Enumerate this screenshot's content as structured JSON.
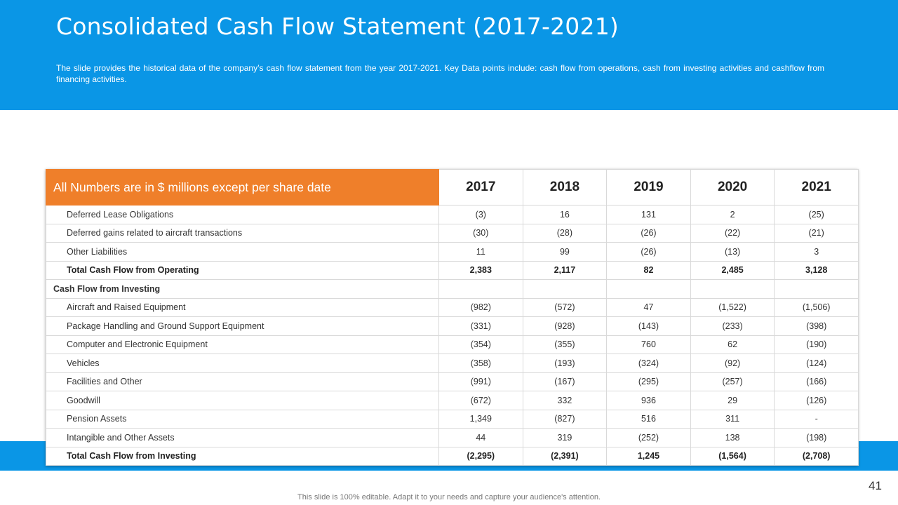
{
  "slide": {
    "title": "Consolidated Cash Flow Statement (2017-2021)",
    "description": "The slide provides the historical data of the company’s cash flow statement from the year 2017-2021. Key Data points include: cash flow from operations, cash from investing activities and cashflow from financing activities.",
    "page_number": "41",
    "footer_note": "This slide is 100% editable. Adapt it to your needs and capture your audience's attention."
  },
  "table": {
    "header_label": "All Numbers are in $ millions except per share date",
    "years": [
      "2017",
      "2018",
      "2019",
      "2020",
      "2021"
    ],
    "rows": [
      {
        "label": "Deferred  Lease Obligations",
        "values": [
          "(3)",
          "16",
          "131",
          "2",
          "(25)"
        ]
      },
      {
        "label": "Deferred  gains related to aircraft  transactions",
        "values": [
          "(30)",
          "(28)",
          "(26)",
          "(22)",
          "(21)"
        ]
      },
      {
        "label": "Other Liabilities",
        "values": [
          "11",
          "99",
          "(26)",
          "(13)",
          "3"
        ]
      },
      {
        "label": "Total  Cash Flow from Operating",
        "values": [
          "2,383",
          "2,117",
          "82",
          "2,485",
          "3,128"
        ]
      },
      {
        "label": "Cash Flow from Investing",
        "values": [
          "",
          "",
          "",
          "",
          ""
        ]
      },
      {
        "label": "Aircraft  and Raised Equipment",
        "values": [
          "(982)",
          "(572)",
          "47",
          "(1,522)",
          "(1,506)"
        ]
      },
      {
        "label": "Package Handling  and Ground  Support Equipment",
        "values": [
          "(331)",
          "(928)",
          "(143)",
          "(233)",
          "(398)"
        ]
      },
      {
        "label": "Computer  and Electronic Equipment",
        "values": [
          "(354)",
          "(355)",
          "760",
          "62",
          "(190)"
        ]
      },
      {
        "label": "Vehicles",
        "values": [
          "(358)",
          "(193)",
          "(324)",
          "(92)",
          "(124)"
        ]
      },
      {
        "label": "Facilities and Other",
        "values": [
          "(991)",
          "(167)",
          "(295)",
          "(257)",
          "(166)"
        ]
      },
      {
        "label": "Goodwill",
        "values": [
          "(672)",
          "332",
          "936",
          "29",
          "(126)"
        ]
      },
      {
        "label": "Pension Assets",
        "values": [
          "1,349",
          "(827)",
          "516",
          "311",
          "-"
        ]
      },
      {
        "label": "Intangible  and Other Assets",
        "values": [
          "44",
          "319",
          "(252)",
          "138",
          "(198)"
        ]
      },
      {
        "label": "Total Cash Flow from Investing",
        "values": [
          "(2,295)",
          "(2,391)",
          "1,245",
          "(1,564)",
          "(2,708)"
        ]
      }
    ]
  },
  "colors": {
    "header_blue": "#0a96e6",
    "header_orange": "#ef7f2a"
  }
}
